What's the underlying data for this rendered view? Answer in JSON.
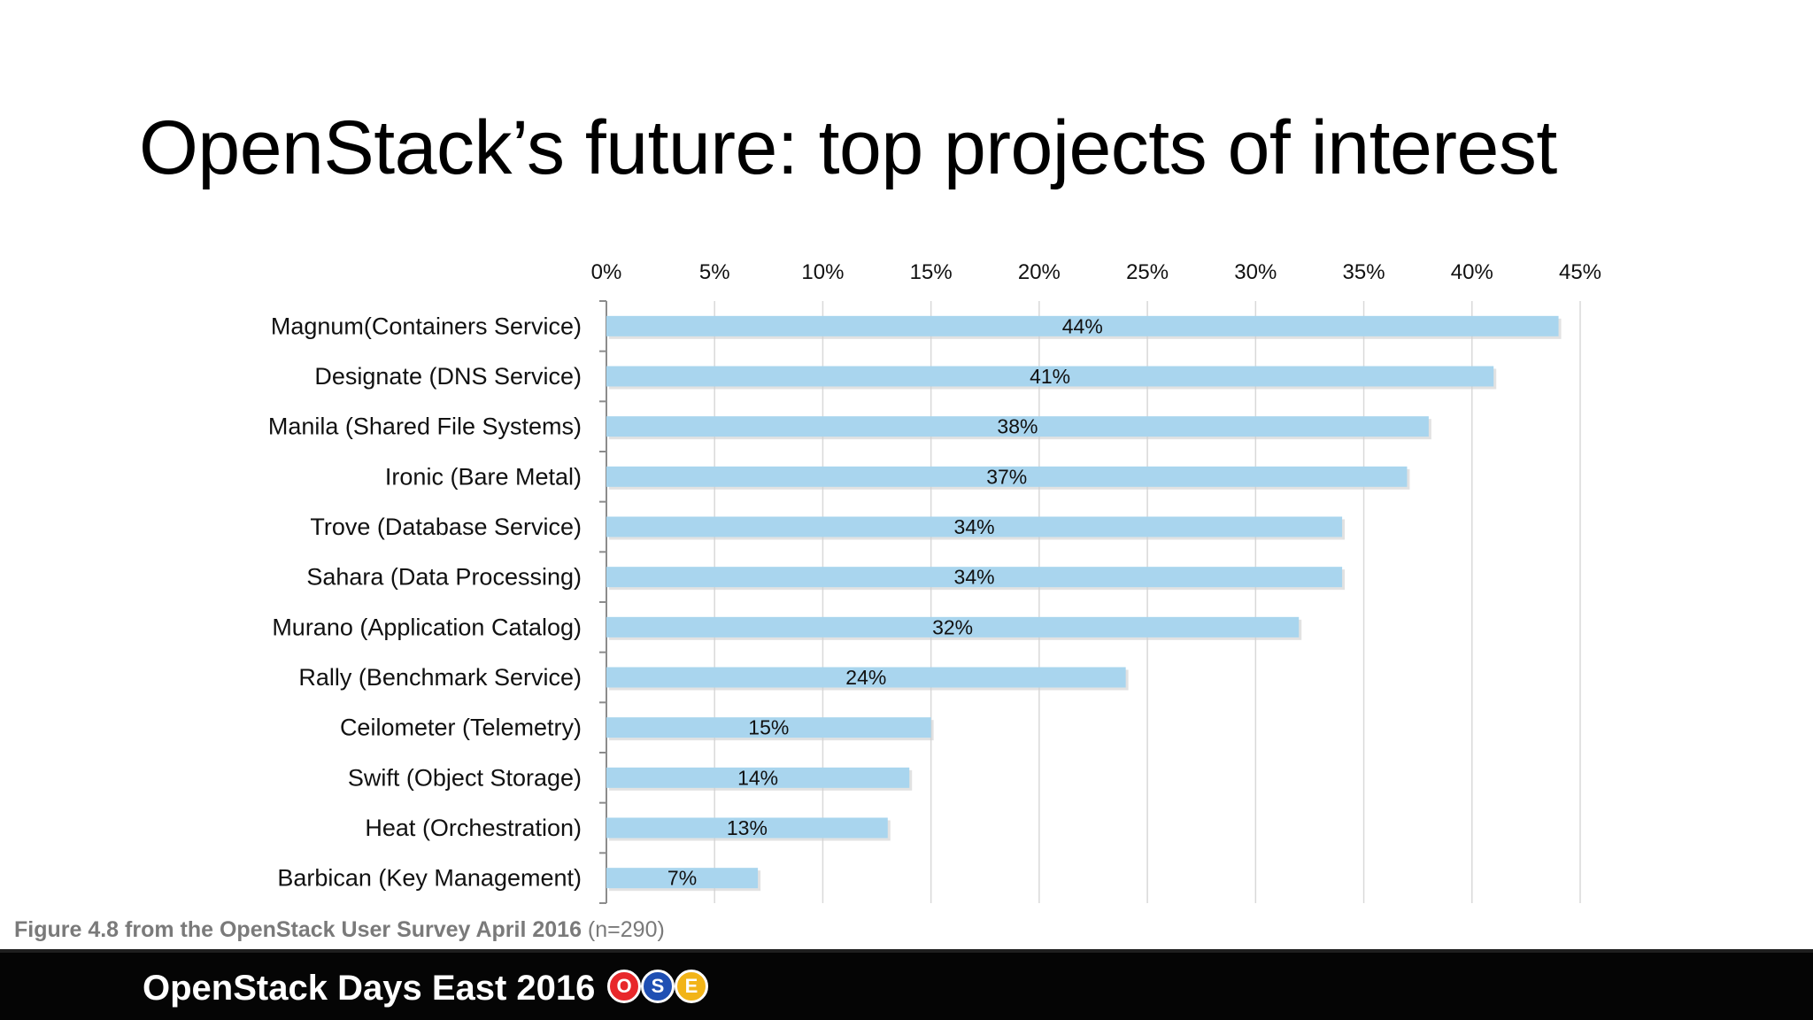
{
  "slide": {
    "title": "OpenStack’s future: top projects of interest"
  },
  "caption": {
    "bold": "Figure 4.8 from the OpenStack User Survey April 2016",
    "normal": " (n=290)"
  },
  "footer": {
    "text": "OpenStack Days East 2016",
    "logo": [
      {
        "letter": "O",
        "color": "#e8282b"
      },
      {
        "letter": "S",
        "color": "#1f4fb3"
      },
      {
        "letter": "E",
        "color": "#f2b418"
      }
    ]
  },
  "colors": {
    "bar": "#a9d5ee",
    "grid": "#d9d9d9",
    "axis": "#8c8c8c",
    "footer_bg": "#050505"
  },
  "chart_data": {
    "type": "bar",
    "orientation": "horizontal",
    "categories": [
      "Magnum(Containers Service)",
      "Designate (DNS Service)",
      "Manila (Shared File Systems)",
      "Ironic (Bare Metal)",
      "Trove (Database Service)",
      "Sahara (Data Processing)",
      "Murano (Application Catalog)",
      "Rally (Benchmark Service)",
      "Ceilometer (Telemetry)",
      "Swift (Object Storage)",
      "Heat (Orchestration)",
      "Barbican (Key Management)"
    ],
    "values": [
      44,
      41,
      38,
      37,
      34,
      34,
      32,
      24,
      15,
      14,
      13,
      7
    ],
    "data_labels": [
      "44%",
      "41%",
      "38%",
      "37%",
      "34%",
      "34%",
      "32%",
      "24%",
      "15%",
      "14%",
      "13%",
      "7%"
    ],
    "xticks": [
      0,
      5,
      10,
      15,
      20,
      25,
      30,
      35,
      40,
      45
    ],
    "xtick_labels": [
      "0%",
      "5%",
      "10%",
      "15%",
      "20%",
      "25%",
      "30%",
      "35%",
      "40%",
      "45%"
    ],
    "xlim": [
      0,
      45
    ],
    "x_axis_position": "top",
    "grid": true,
    "legend": "none"
  }
}
